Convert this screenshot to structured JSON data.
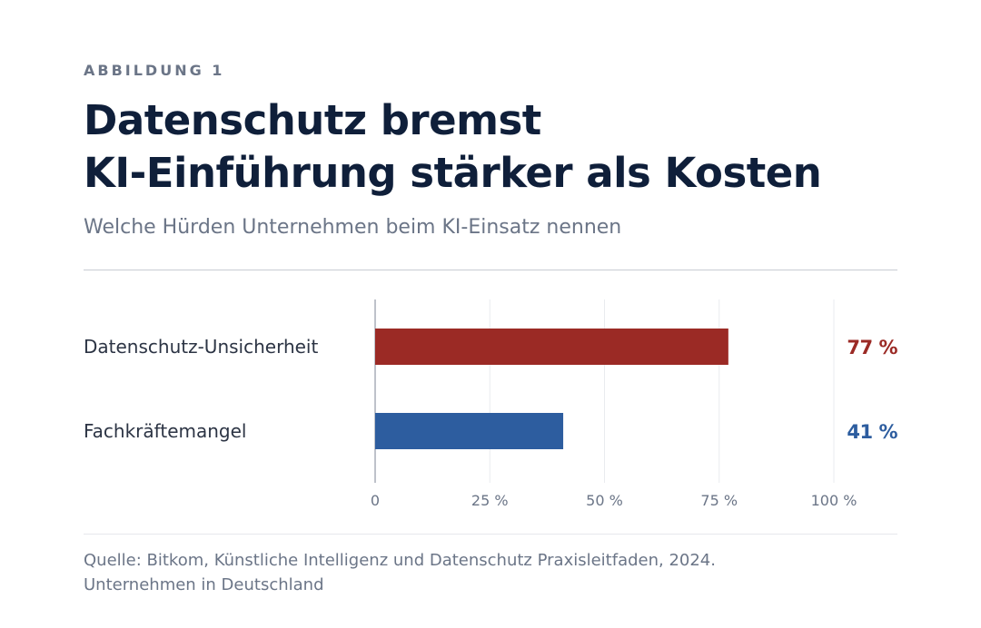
{
  "kicker": "ABBILDUNG 1",
  "title_line1": "Datenschutz bremst",
  "title_line2": "KI-Einführung stärker als Kosten",
  "subtitle": "Welche Hürden Unternehmen beim KI-Einsatz nennen",
  "source_line1": "Quelle: Bitkom, Künstliche Intelligenz und Datenschutz Praxisleitfaden, 2024.",
  "source_line2": "Unternehmen in Deutschland",
  "chart_data": {
    "type": "bar",
    "orientation": "horizontal",
    "categories": [
      "Datenschutz-Unsicherheit",
      "Fachkräftemangel"
    ],
    "values": [
      77,
      41
    ],
    "value_labels": [
      "77 %",
      "41 %"
    ],
    "colors": [
      "#9b2a25",
      "#2d5d9f"
    ],
    "xlim": [
      0,
      100
    ],
    "xticks": [
      0,
      25,
      50,
      75,
      100
    ],
    "xtick_labels": [
      "0",
      "25 %",
      "50 %",
      "75 %",
      "100 %"
    ],
    "grid": true
  }
}
